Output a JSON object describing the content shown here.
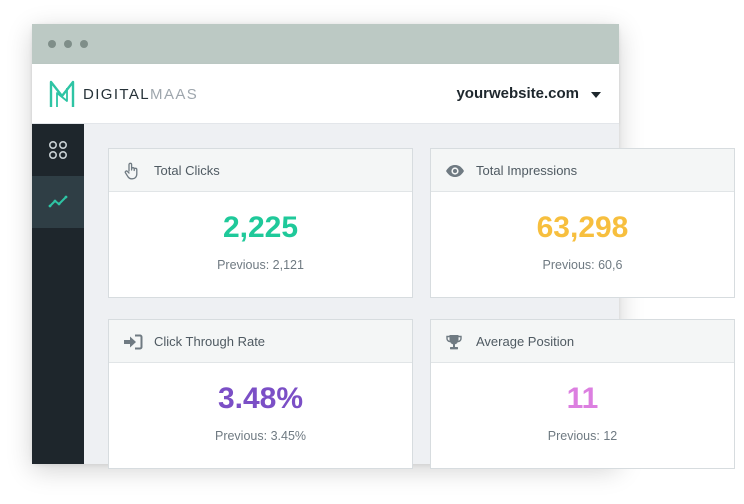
{
  "brand": {
    "part1": "DIGITAL",
    "part2": "MAAS",
    "color": "#2ec4a4"
  },
  "header": {
    "site": "yourwebsite.com"
  },
  "sidebar": {
    "items": [
      {
        "icon": "grid-icon",
        "active": false
      },
      {
        "icon": "trend-chart-icon",
        "active": true
      }
    ]
  },
  "cards": [
    {
      "title": "Total Clicks",
      "icon": "pointer-hand-icon",
      "value": "2,225",
      "previous": "Previous: 2,121",
      "color": "#1fc99a"
    },
    {
      "title": "Total Impressions",
      "icon": "eye-icon",
      "value": "63,298",
      "previous": "Previous: 60,6",
      "color": "#f7bf3e"
    },
    {
      "title": "Click Through Rate",
      "icon": "sign-in-arrow-icon",
      "value": "3.48%",
      "previous": "Previous: 3.45%",
      "color": "#7b4fc6"
    },
    {
      "title": "Average Position",
      "icon": "trophy-icon",
      "value": "11",
      "previous": "Previous: 12",
      "color": "#dc7fe0"
    }
  ]
}
